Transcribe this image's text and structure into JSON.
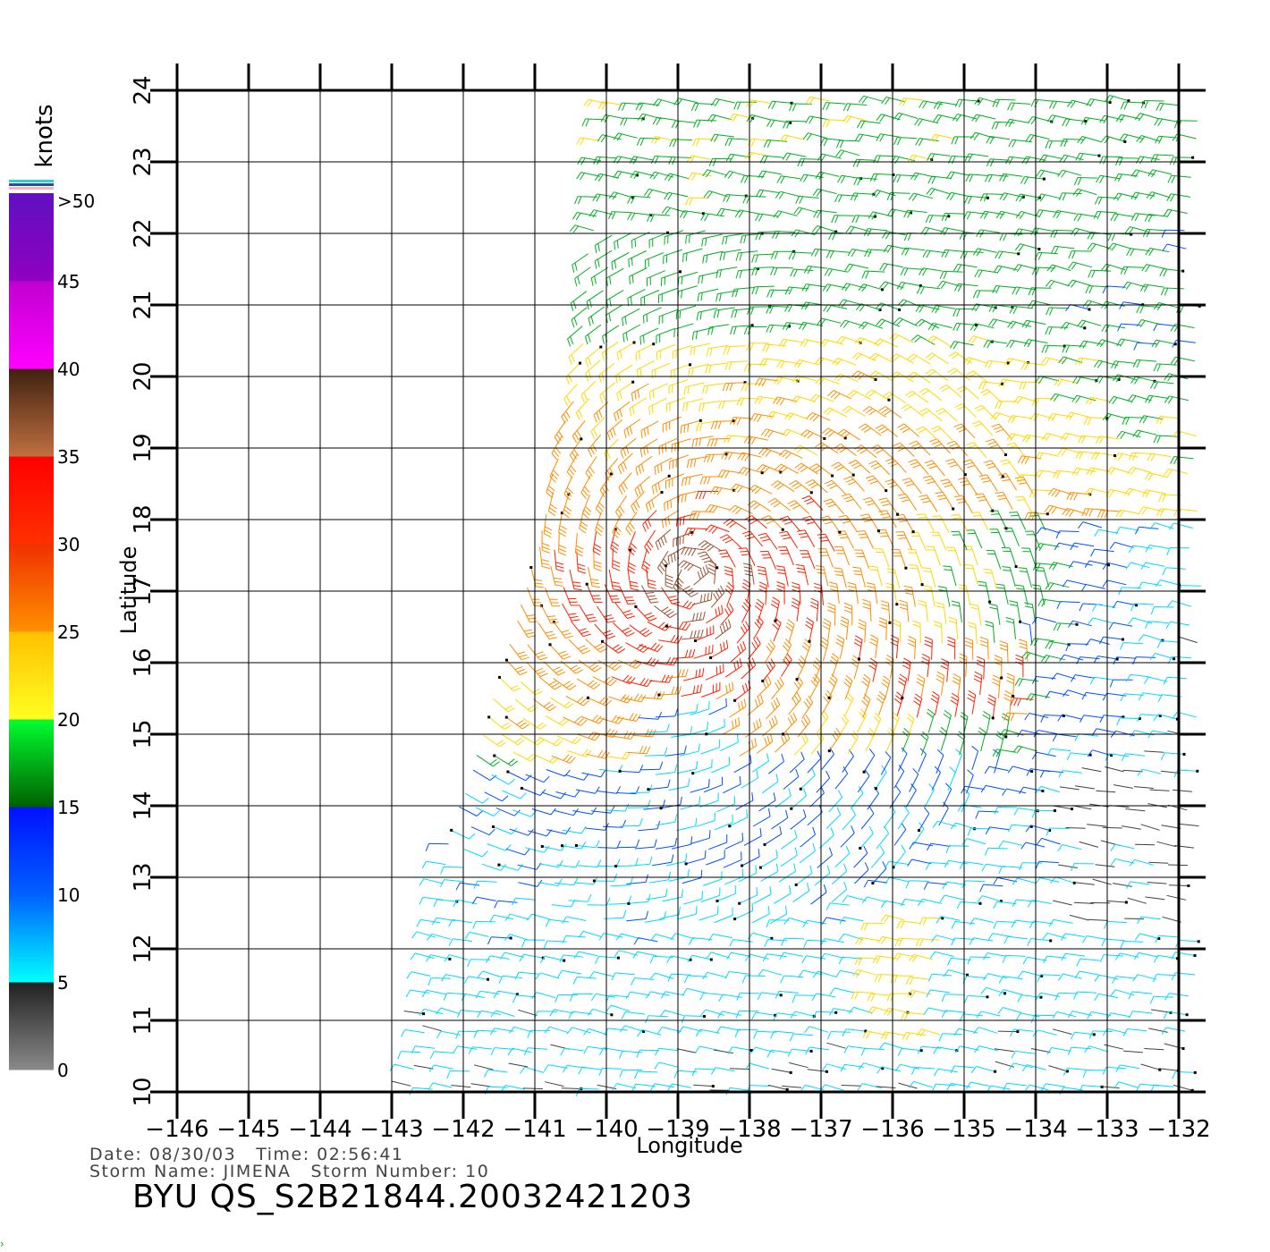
{
  "chart_data": {
    "type": "wind-barb-map",
    "xlabel": "Longitude",
    "ylabel": "Latitude",
    "xlim": [
      -146,
      -132
    ],
    "ylim": [
      10,
      24
    ],
    "x_ticks": [
      "-146",
      "-145",
      "-144",
      "-143",
      "-142",
      "-141",
      "-140",
      "-139",
      "-138",
      "-137",
      "-136",
      "-135",
      "-134",
      "-133",
      "-132"
    ],
    "y_ticks": [
      "10",
      "11",
      "12",
      "13",
      "14",
      "15",
      "16",
      "17",
      "18",
      "19",
      "20",
      "21",
      "22",
      "23",
      "24"
    ],
    "grid": true,
    "storm_center": {
      "lon": -138.8,
      "lat": 17.2
    },
    "swath_boundary_lon_at_lat": [
      [
        10,
        -142.7
      ],
      [
        13.5,
        -142.2
      ],
      [
        17,
        -141.1
      ],
      [
        20,
        -140.4
      ],
      [
        22,
        -140.2
      ],
      [
        24,
        -140.0
      ]
    ],
    "colorbar": {
      "title": "knots",
      "labels": [
        ">50",
        "45",
        "40",
        "35",
        "30",
        "25",
        "20",
        "15",
        "10",
        "5",
        "0"
      ],
      "segments": [
        {
          "from": 0,
          "to": 5,
          "colors": [
            "#8a8a8a",
            "#202020"
          ]
        },
        {
          "from": 5,
          "to": 10,
          "colors": [
            "#00ffff",
            "#0060ff"
          ]
        },
        {
          "from": 10,
          "to": 15,
          "colors": [
            "#0060ff",
            "#0010ff"
          ]
        },
        {
          "from": 15,
          "to": 20,
          "colors": [
            "#006000",
            "#00ff30"
          ]
        },
        {
          "from": 20,
          "to": 25,
          "colors": [
            "#ffff20",
            "#ffc000"
          ]
        },
        {
          "from": 25,
          "to": 30,
          "colors": [
            "#ff9000",
            "#f03000"
          ]
        },
        {
          "from": 30,
          "to": 35,
          "colors": [
            "#ff3000",
            "#ff0000"
          ]
        },
        {
          "from": 35,
          "to": 40,
          "colors": [
            "#c07040",
            "#402010"
          ]
        },
        {
          "from": 40,
          "to": 45,
          "colors": [
            "#ff00ff",
            "#c000d0"
          ]
        },
        {
          "from": 45,
          "to": 50,
          "colors": [
            "#9000c0",
            "#6010c0"
          ]
        }
      ],
      "top_stripes": [
        "#30d0d0",
        "#2050a0",
        "#ffb0c0"
      ]
    },
    "speed_colors": {
      "0": "#404040",
      "5": "#00d8ff",
      "10": "#0050ff",
      "15": "#00b020",
      "20": "#ffd800",
      "25": "#ff8c00",
      "30": "#ff2000",
      "35": "#a05030",
      "40": "#a000d0"
    }
  },
  "footer": {
    "date_label": "Date:",
    "date_value": "08/30/03",
    "time_label": "Time:",
    "time_value": "02:56:41",
    "storm_name_label": "Storm Name:",
    "storm_name_value": "JIMENA",
    "storm_number_label": "Storm Number:",
    "storm_number_value": "10",
    "product_id": "BYU QS_S2B21844.20032421203"
  }
}
